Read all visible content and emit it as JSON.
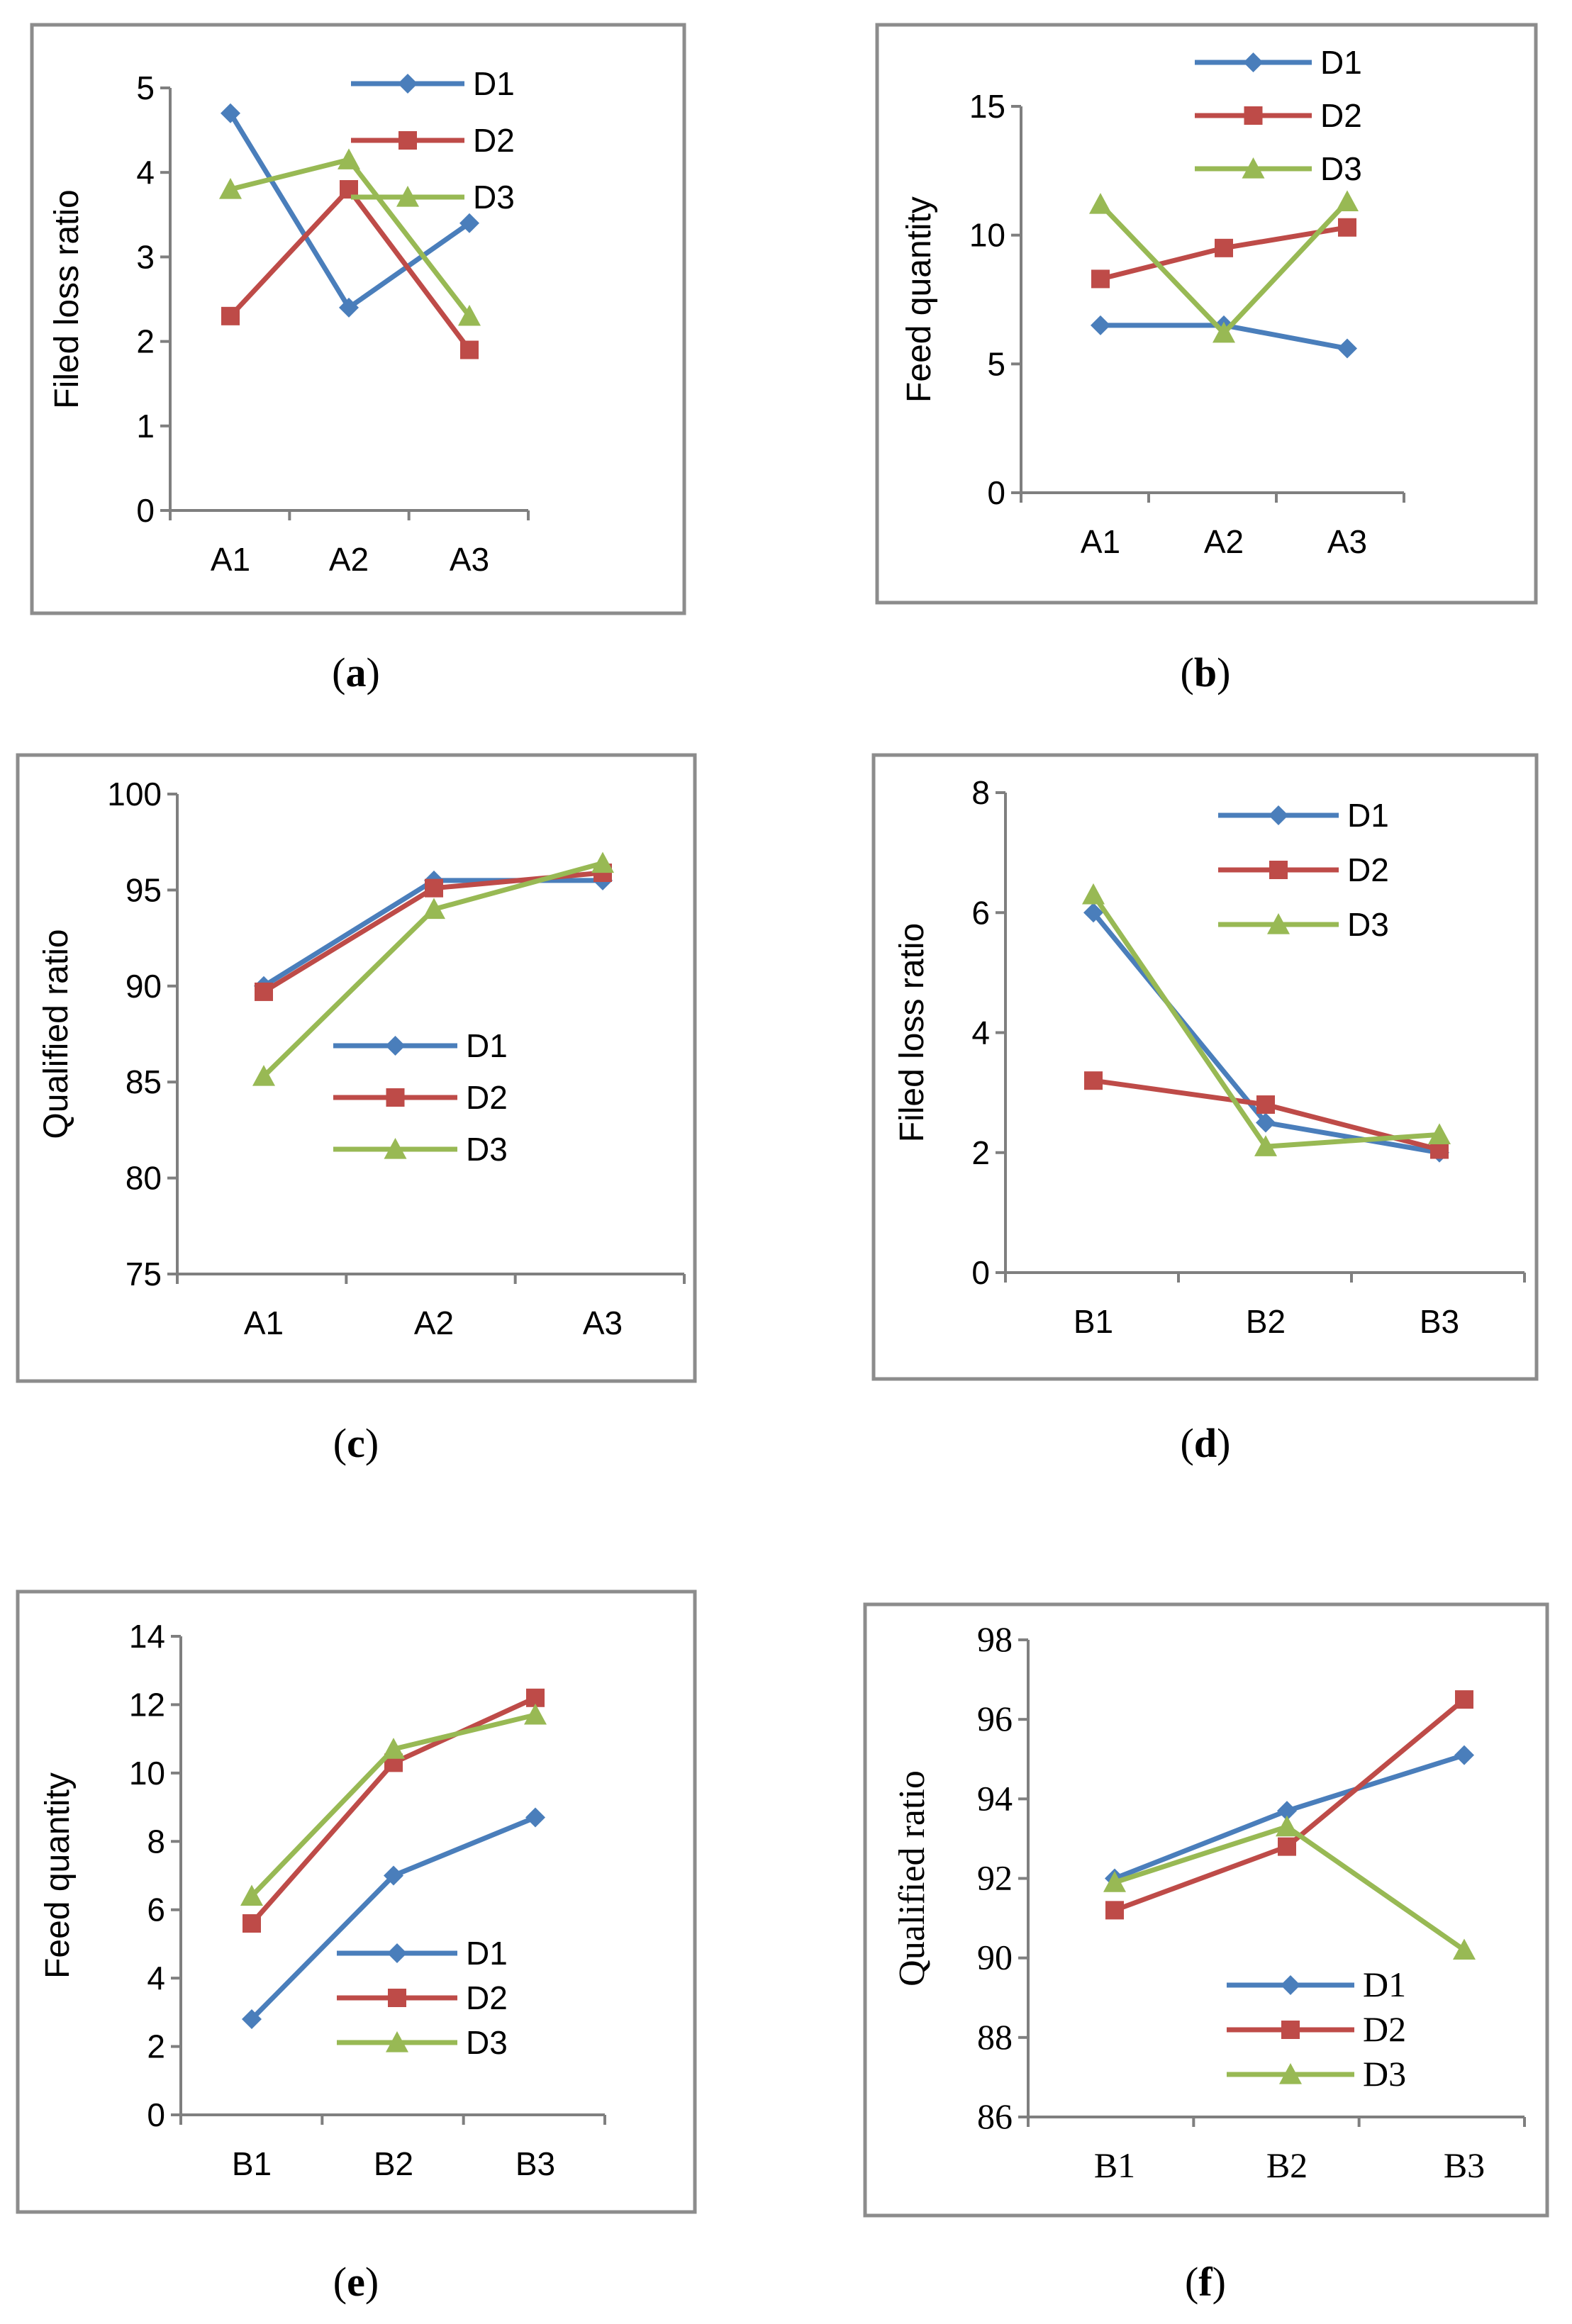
{
  "colors": {
    "D1": "#4a7ebb",
    "D2": "#be4b48",
    "D3": "#98b954"
  },
  "chart_data": [
    {
      "id": "a",
      "type": "line",
      "caption_letter": "a",
      "categories": [
        "A1",
        "A2",
        "A3"
      ],
      "ylabel": "Filed loss ratio",
      "ylim": [
        0,
        5
      ],
      "yticks": [
        "0",
        "1",
        "2",
        "3",
        "4",
        "5"
      ],
      "series": [
        {
          "name": "D1",
          "values": [
            4.7,
            2.4,
            3.4
          ]
        },
        {
          "name": "D2",
          "values": [
            2.3,
            3.8,
            1.9
          ]
        },
        {
          "name": "D3",
          "values": [
            3.8,
            4.15,
            2.3
          ]
        }
      ],
      "legend": "top-right"
    },
    {
      "id": "b",
      "type": "line",
      "caption_letter": "b",
      "categories": [
        "A1",
        "A2",
        "A3"
      ],
      "ylabel": "Feed quantity",
      "ylim": [
        0,
        15
      ],
      "yticks": [
        "0",
        "5",
        "10",
        "15"
      ],
      "series": [
        {
          "name": "D1",
          "values": [
            6.5,
            6.5,
            5.6
          ]
        },
        {
          "name": "D2",
          "values": [
            8.3,
            9.5,
            10.3
          ]
        },
        {
          "name": "D3",
          "values": [
            11.2,
            6.2,
            11.3
          ]
        }
      ],
      "legend": "top-right"
    },
    {
      "id": "c",
      "type": "line",
      "caption_letter": "c",
      "categories": [
        "A1",
        "A2",
        "A3"
      ],
      "ylabel": "Qualified ratio",
      "ylim": [
        75,
        100
      ],
      "yticks": [
        "75",
        "80",
        "85",
        "90",
        "95",
        "100"
      ],
      "series": [
        {
          "name": "D1",
          "values": [
            90.0,
            95.5,
            95.5
          ]
        },
        {
          "name": "D2",
          "values": [
            89.7,
            95.1,
            95.9
          ]
        },
        {
          "name": "D3",
          "values": [
            85.3,
            94.0,
            96.4
          ]
        }
      ],
      "legend": "right"
    },
    {
      "id": "d",
      "type": "line",
      "caption_letter": "d",
      "categories": [
        "B1",
        "B2",
        "B3"
      ],
      "ylabel": "Filed loss ratio",
      "ylim": [
        0,
        8
      ],
      "yticks": [
        "0",
        "2",
        "4",
        "6",
        "8"
      ],
      "series": [
        {
          "name": "D1",
          "values": [
            6.0,
            2.5,
            2.0
          ]
        },
        {
          "name": "D2",
          "values": [
            3.2,
            2.8,
            2.05
          ]
        },
        {
          "name": "D3",
          "values": [
            6.3,
            2.1,
            2.3
          ]
        }
      ],
      "legend": "top-right"
    },
    {
      "id": "e",
      "type": "line",
      "caption_letter": "e",
      "categories": [
        "B1",
        "B2",
        "B3"
      ],
      "ylabel": "Feed quantity",
      "ylim": [
        0,
        14
      ],
      "yticks": [
        "0",
        "2",
        "4",
        "6",
        "8",
        "10",
        "12",
        "14"
      ],
      "series": [
        {
          "name": "D1",
          "values": [
            2.8,
            7.0,
            8.7
          ]
        },
        {
          "name": "D2",
          "values": [
            5.6,
            10.3,
            12.2
          ]
        },
        {
          "name": "D3",
          "values": [
            6.4,
            10.7,
            11.7
          ]
        }
      ],
      "legend": "bottom-right"
    },
    {
      "id": "f",
      "type": "line",
      "caption_letter": "f",
      "categories": [
        "B1",
        "B2",
        "B3"
      ],
      "ylabel": "Qualified ratio",
      "ylim": [
        86,
        98
      ],
      "yticks": [
        "86",
        "88",
        "90",
        "92",
        "94",
        "96",
        "98"
      ],
      "series": [
        {
          "name": "D1",
          "values": [
            92.0,
            93.7,
            95.1
          ]
        },
        {
          "name": "D2",
          "values": [
            91.2,
            92.8,
            96.5
          ]
        },
        {
          "name": "D3",
          "values": [
            91.9,
            93.3,
            90.2
          ]
        }
      ],
      "legend": "bottom-right"
    }
  ]
}
